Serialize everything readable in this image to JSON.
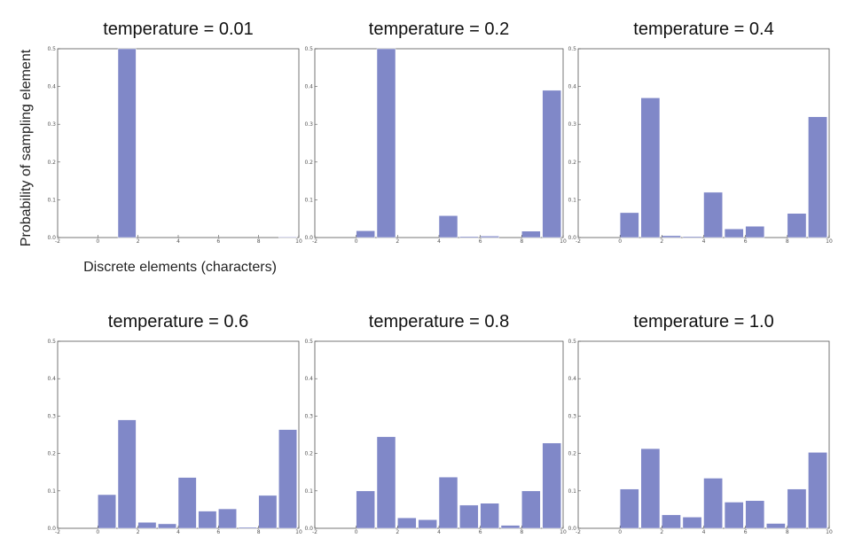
{
  "figure": {
    "ylabel": "Probability of sampling element",
    "xlabel": "Discrete elements (characters)"
  },
  "colors": {
    "bar": "#8088c8",
    "frame": "#555555"
  },
  "chart_data": [
    {
      "type": "bar",
      "title": "temperature = 0.01",
      "x": [
        0,
        1,
        2,
        3,
        4,
        5,
        6,
        7,
        8,
        9
      ],
      "values": [
        0.0,
        0.5,
        0.0,
        0.0,
        0.0,
        0.0,
        0.0,
        0.0,
        0.0,
        0.002
      ],
      "xlim": [
        -2,
        10
      ],
      "ylim": [
        0,
        0.5
      ],
      "xticks": [
        "-2",
        "0",
        "2",
        "4",
        "6",
        "8",
        "10"
      ],
      "yticks": [
        "0.0",
        "0.1",
        "0.2",
        "0.3",
        "0.4",
        "0.5"
      ]
    },
    {
      "type": "bar",
      "title": "temperature = 0.2",
      "x": [
        0,
        1,
        2,
        3,
        4,
        5,
        6,
        7,
        8,
        9
      ],
      "values": [
        0.018,
        0.5,
        0.0,
        0.0,
        0.058,
        0.003,
        0.004,
        0.0,
        0.017,
        0.39
      ],
      "xlim": [
        -2,
        10
      ],
      "ylim": [
        0,
        0.5
      ],
      "xticks": [
        "-2",
        "0",
        "2",
        "4",
        "6",
        "8",
        "10"
      ],
      "yticks": [
        "0.0",
        "0.1",
        "0.2",
        "0.3",
        "0.4",
        "0.5"
      ]
    },
    {
      "type": "bar",
      "title": "temperature = 0.4",
      "x": [
        0,
        1,
        2,
        3,
        4,
        5,
        6,
        7,
        8,
        9
      ],
      "values": [
        0.066,
        0.37,
        0.005,
        0.003,
        0.12,
        0.023,
        0.03,
        0.0,
        0.064,
        0.32
      ],
      "xlim": [
        -2,
        10
      ],
      "ylim": [
        0,
        0.5
      ],
      "xticks": [
        "-2",
        "0",
        "2",
        "4",
        "6",
        "8",
        "10"
      ],
      "yticks": [
        "0.0",
        "0.1",
        "0.2",
        "0.3",
        "0.4",
        "0.5"
      ]
    },
    {
      "type": "bar",
      "title": "temperature = 0.6",
      "x": [
        0,
        1,
        2,
        3,
        4,
        5,
        6,
        7,
        8,
        9
      ],
      "values": [
        0.09,
        0.29,
        0.016,
        0.012,
        0.136,
        0.046,
        0.052,
        0.003,
        0.088,
        0.264
      ],
      "xlim": [
        -2,
        10
      ],
      "ylim": [
        0,
        0.5
      ],
      "xticks": [
        "-2",
        "0",
        "2",
        "4",
        "6",
        "8",
        "10"
      ],
      "yticks": [
        "0.0",
        "0.1",
        "0.2",
        "0.3",
        "0.4",
        "0.5"
      ]
    },
    {
      "type": "bar",
      "title": "temperature = 0.8",
      "x": [
        0,
        1,
        2,
        3,
        4,
        5,
        6,
        7,
        8,
        9
      ],
      "values": [
        0.1,
        0.245,
        0.028,
        0.023,
        0.137,
        0.062,
        0.067,
        0.008,
        0.1,
        0.228
      ],
      "xlim": [
        -2,
        10
      ],
      "ylim": [
        0,
        0.5
      ],
      "xticks": [
        "-2",
        "0",
        "2",
        "4",
        "6",
        "8",
        "10"
      ],
      "yticks": [
        "0.0",
        "0.1",
        "0.2",
        "0.3",
        "0.4",
        "0.5"
      ]
    },
    {
      "type": "bar",
      "title": "temperature = 1.0",
      "x": [
        0,
        1,
        2,
        3,
        4,
        5,
        6,
        7,
        8,
        9
      ],
      "values": [
        0.105,
        0.213,
        0.036,
        0.03,
        0.134,
        0.07,
        0.074,
        0.013,
        0.105,
        0.203
      ],
      "xlim": [
        -2,
        10
      ],
      "ylim": [
        0,
        0.5
      ],
      "xticks": [
        "-2",
        "0",
        "2",
        "4",
        "6",
        "8",
        "10"
      ],
      "yticks": [
        "0.0",
        "0.1",
        "0.2",
        "0.3",
        "0.4",
        "0.5"
      ]
    }
  ]
}
